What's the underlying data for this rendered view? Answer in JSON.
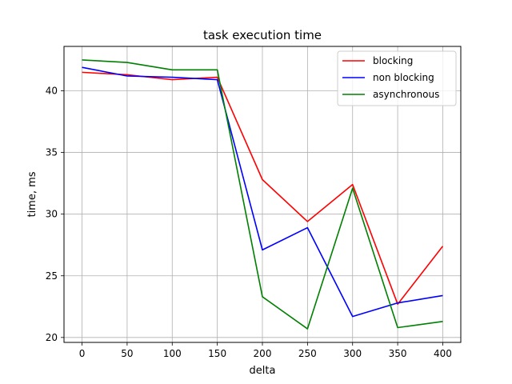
{
  "chart_data": {
    "type": "line",
    "title": "task execution time",
    "xlabel": "delta",
    "ylabel": "time, ms",
    "x": [
      0,
      50,
      100,
      150,
      200,
      250,
      300,
      350,
      400
    ],
    "xlim": [
      -20,
      420
    ],
    "ylim": [
      19.6,
      43.6
    ],
    "xticks": [
      0,
      50,
      100,
      150,
      200,
      250,
      300,
      350,
      400
    ],
    "yticks": [
      20,
      25,
      30,
      35,
      40
    ],
    "grid": true,
    "legend_position": "top-right",
    "series": [
      {
        "name": "blocking",
        "color": "#ff0000",
        "values": [
          41.5,
          41.3,
          40.9,
          41.1,
          32.8,
          29.4,
          32.4,
          22.7,
          27.4
        ]
      },
      {
        "name": "non blocking",
        "color": "#0000ff",
        "values": [
          41.9,
          41.2,
          41.1,
          40.9,
          27.1,
          28.9,
          21.7,
          22.8,
          23.4
        ]
      },
      {
        "name": "asynchronous",
        "color": "#008000",
        "values": [
          42.5,
          42.3,
          41.7,
          41.7,
          23.3,
          20.7,
          32.1,
          20.8,
          21.3
        ]
      }
    ]
  }
}
